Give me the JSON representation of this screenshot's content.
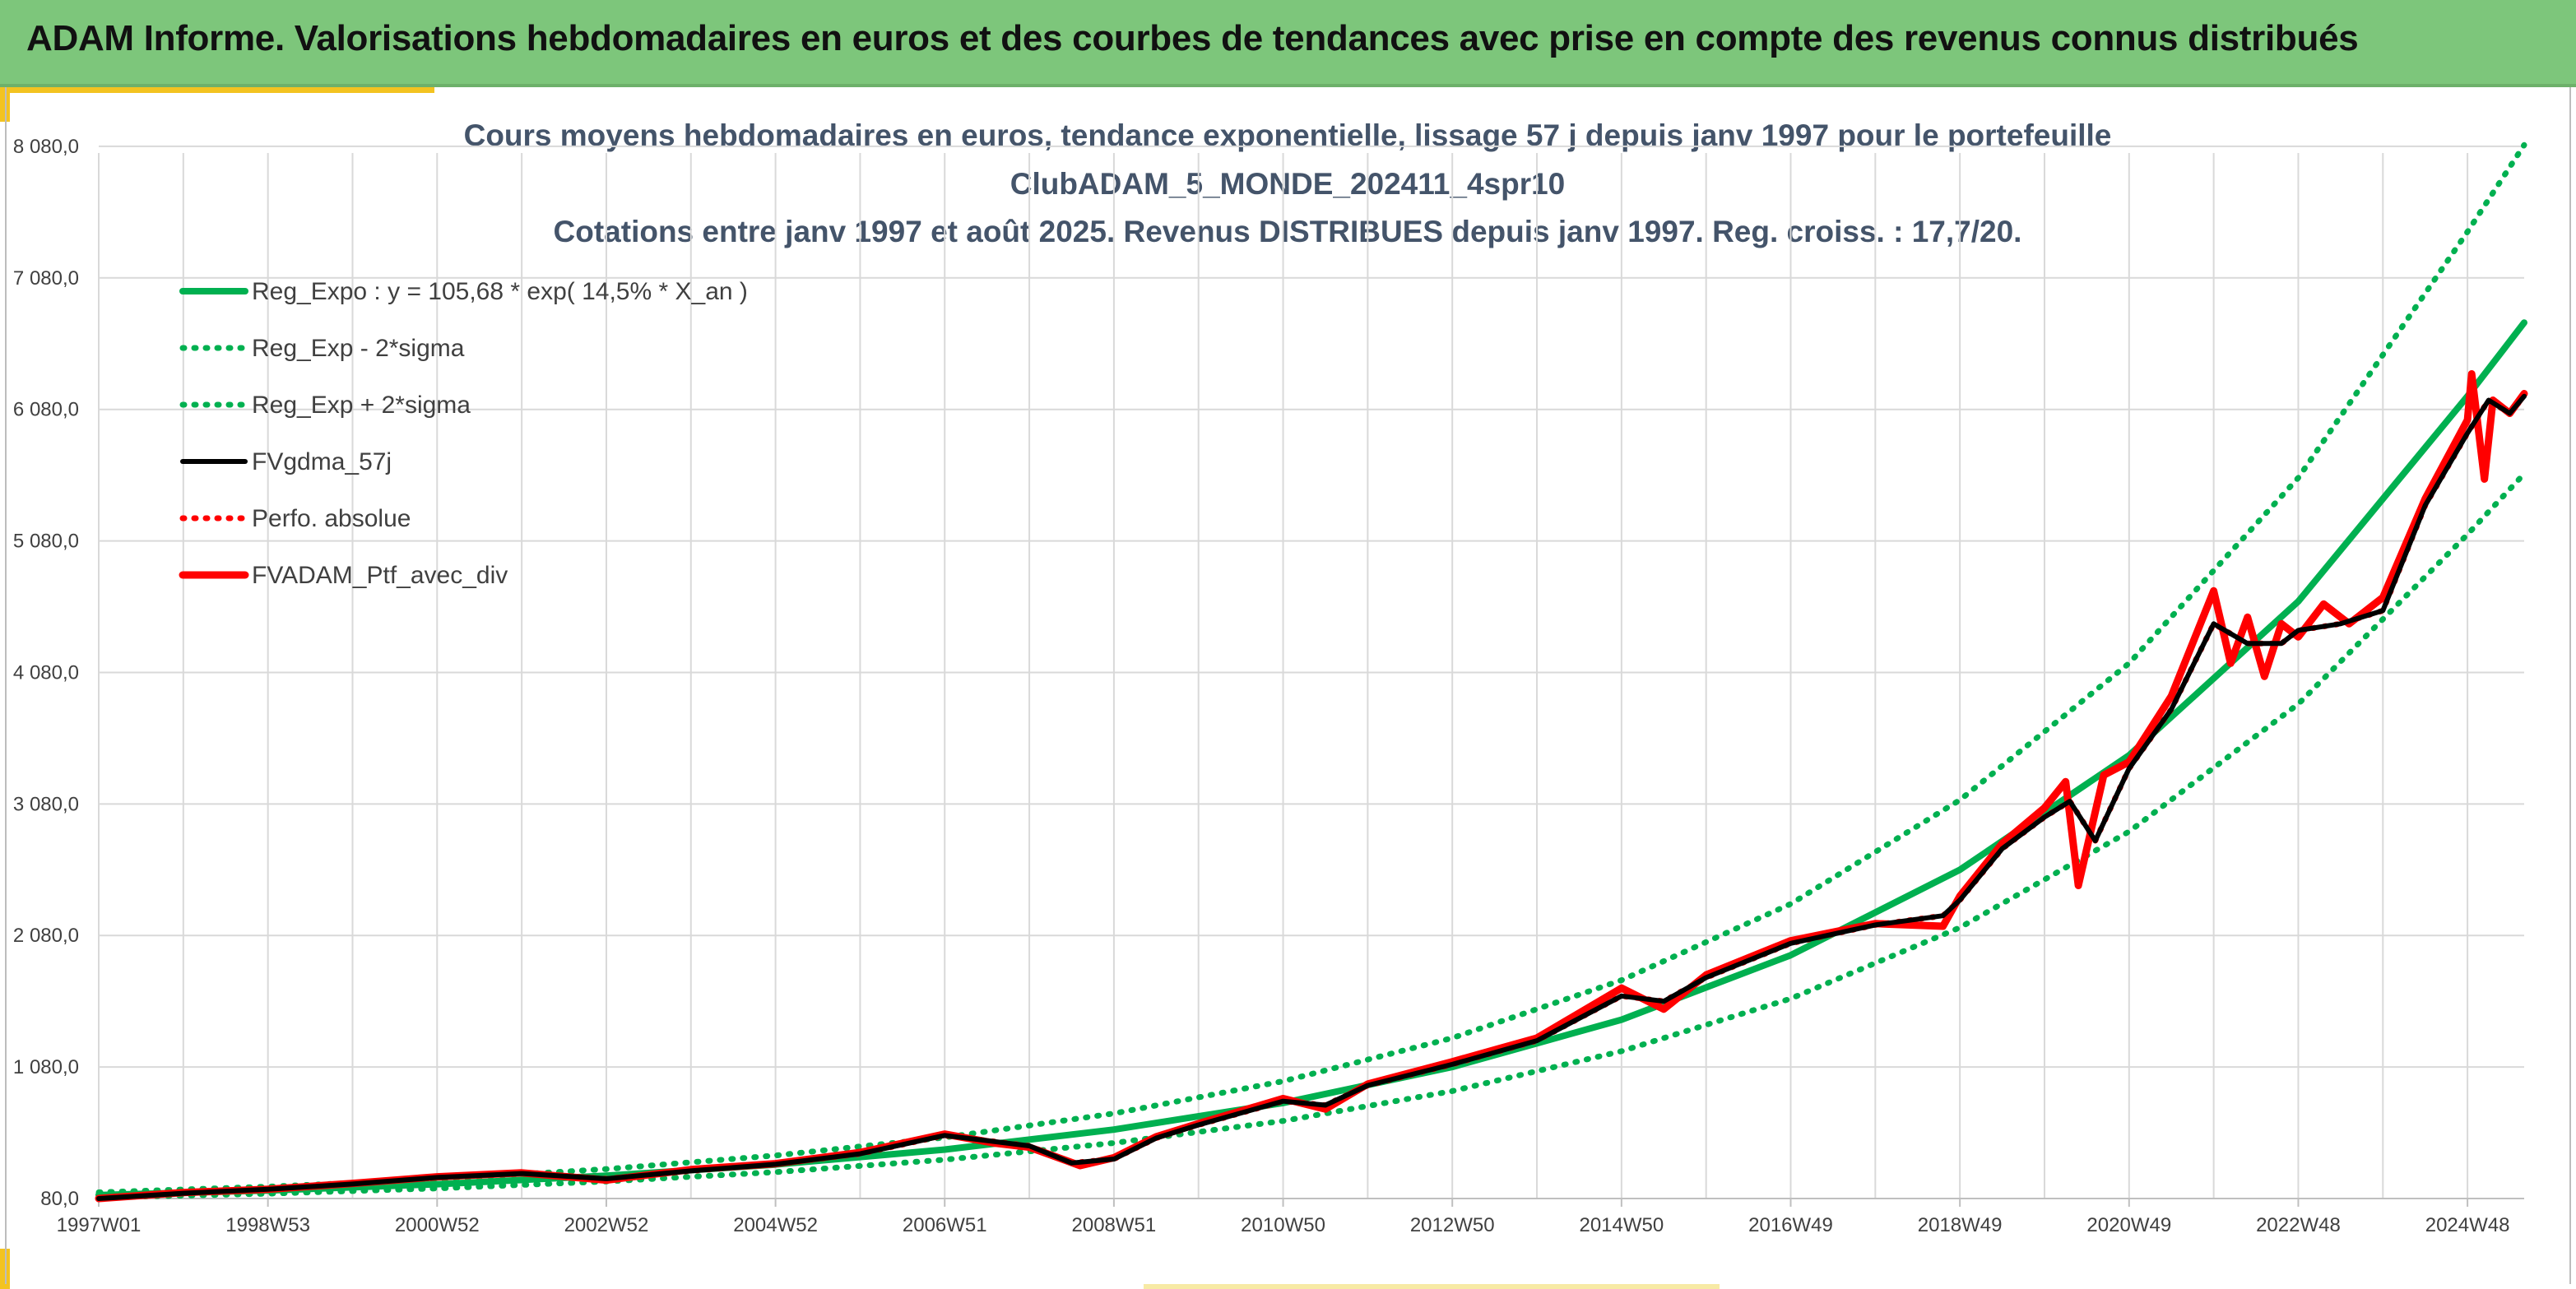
{
  "banner": {
    "title": "ADAM Informe. Valorisations hebdomadaires en euros et des courbes de tendances avec prise en compte des revenus connus distribués"
  },
  "colors": {
    "banner": "#7dc67b",
    "accent": "#f3c320",
    "reg_expo": "#00b050",
    "fvgdma": "#000000",
    "perfo": "#ff0000",
    "portfolio": "#ff0000",
    "title_text": "#44546a"
  },
  "chart_data": {
    "type": "line",
    "title": [
      "Cours moyens hebdomadaires en euros, tendance exponentielle, lissage 57 j depuis janv 1997 pour le portefeuille",
      "ClubADAM_5_MONDE_202411_4spr10",
      "Cotations entre janv 1997 et août 2025. Revenus DISTRIBUES depuis janv 1997. Reg. croiss. : 17,7/20."
    ],
    "xlabel": "",
    "ylabel": "",
    "ylim": [
      80,
      8080
    ],
    "xlim": [
      1997.0,
      2025.67
    ],
    "grid": true,
    "legend_position": "top-left",
    "x_ticks": [
      {
        "x": 1997.0,
        "label": "1997W01"
      },
      {
        "x": 1999.0,
        "label": "1998W53"
      },
      {
        "x": 2001.0,
        "label": "2000W52"
      },
      {
        "x": 2003.0,
        "label": "2002W52"
      },
      {
        "x": 2005.0,
        "label": "2004W52"
      },
      {
        "x": 2007.0,
        "label": "2006W51"
      },
      {
        "x": 2009.0,
        "label": "2008W51"
      },
      {
        "x": 2011.0,
        "label": "2010W50"
      },
      {
        "x": 2013.0,
        "label": "2012W50"
      },
      {
        "x": 2015.0,
        "label": "2014W50"
      },
      {
        "x": 2017.0,
        "label": "2016W49"
      },
      {
        "x": 2019.0,
        "label": "2018W49"
      },
      {
        "x": 2021.0,
        "label": "2020W49"
      },
      {
        "x": 2023.0,
        "label": "2022W48"
      },
      {
        "x": 2025.0,
        "label": "2024W48"
      }
    ],
    "y_ticks": [
      {
        "y": 80,
        "label": "80,0"
      },
      {
        "y": 1080,
        "label": "1 080,0"
      },
      {
        "y": 2080,
        "label": "2 080,0"
      },
      {
        "y": 3080,
        "label": "3 080,0"
      },
      {
        "y": 4080,
        "label": "4 080,0"
      },
      {
        "y": 5080,
        "label": "5 080,0"
      },
      {
        "y": 6080,
        "label": "6 080,0"
      },
      {
        "y": 7080,
        "label": "7 080,0"
      },
      {
        "y": 8080,
        "label": "8 080,0"
      }
    ],
    "series": [
      {
        "name": "Reg_Expo : y = 105,68 * exp( 14,5% *  X_an )",
        "style": "solid",
        "color": "#00b050",
        "x": [
          1997,
          1999,
          2001,
          2003,
          2005,
          2007,
          2009,
          2011,
          2013,
          2015,
          2017,
          2019,
          2021,
          2023,
          2025,
          2025.67
        ],
        "y": [
          106,
          141,
          189,
          253,
          338,
          452,
          604,
          807,
          1080,
          1440,
          1930,
          2580,
          3450,
          4620,
          6180,
          6740
        ]
      },
      {
        "name": "Reg_Exp - 2*sigma",
        "style": "dotted",
        "color": "#00b050",
        "x": [
          1997,
          1999,
          2001,
          2003,
          2005,
          2007,
          2009,
          2011,
          2013,
          2015,
          2017,
          2019,
          2021,
          2023,
          2025,
          2025.67
        ],
        "y": [
          88,
          117,
          157,
          210,
          281,
          375,
          502,
          670,
          897,
          1200,
          1600,
          2140,
          2870,
          3840,
          5130,
          5590
        ]
      },
      {
        "name": "Reg_Exp + 2*sigma",
        "style": "dotted",
        "color": "#00b050",
        "x": [
          1997,
          1999,
          2001,
          2003,
          2005,
          2007,
          2009,
          2011,
          2013,
          2015,
          2017,
          2019,
          2021,
          2023,
          2025,
          2025.67
        ],
        "y": [
          127,
          170,
          227,
          304,
          407,
          544,
          727,
          972,
          1300,
          1740,
          2320,
          3110,
          4150,
          5560,
          7430,
          8090
        ]
      },
      {
        "name": "FVgdma_57j",
        "style": "solid",
        "color": "#000000",
        "x": [
          1997.0,
          1998.0,
          1999.0,
          2000.0,
          2001.0,
          2002.0,
          2003.0,
          2004.0,
          2005.0,
          2006.0,
          2007.0,
          2008.0,
          2008.5,
          2009.0,
          2009.5,
          2010.0,
          2011.0,
          2011.5,
          2012.0,
          2013.0,
          2014.0,
          2015.0,
          2015.5,
          2016.0,
          2017.0,
          2018.0,
          2018.8,
          2019.0,
          2019.5,
          2020.0,
          2020.3,
          2020.6,
          2021.0,
          2021.5,
          2022.0,
          2022.4,
          2022.8,
          2023.0,
          2023.5,
          2024.0,
          2024.5,
          2025.0,
          2025.25,
          2025.5,
          2025.67
        ],
        "y": [
          80,
          120,
          150,
          190,
          240,
          270,
          230,
          290,
          340,
          420,
          560,
          480,
          350,
          380,
          540,
          640,
          820,
          790,
          940,
          1100,
          1280,
          1620,
          1580,
          1760,
          2020,
          2160,
          2230,
          2350,
          2740,
          2980,
          3100,
          2800,
          3350,
          3800,
          4450,
          4300,
          4300,
          4400,
          4450,
          4550,
          5350,
          5900,
          6150,
          6050,
          6180
        ]
      },
      {
        "name": "Perfo. absolue",
        "style": "dotted",
        "color": "#ff0000",
        "x": [
          1997.0,
          1998.0,
          1999.0,
          2000.0,
          2001.0,
          2002.0,
          2003.0,
          2004.0,
          2005.0,
          2006.0,
          2007.0,
          2008.0,
          2008.5,
          2009.0,
          2009.5,
          2010.0,
          2011.0,
          2011.5,
          2012.0,
          2013.0,
          2014.0,
          2015.0,
          2015.5,
          2016.0,
          2017.0,
          2018.0,
          2018.8,
          2019.0,
          2019.5,
          2020.0,
          2020.3,
          2020.6,
          2021.0,
          2021.5,
          2022.0,
          2022.4,
          2022.8,
          2023.0,
          2023.5,
          2024.0,
          2024.5,
          2025.0,
          2025.25,
          2025.5,
          2025.67
        ],
        "y": [
          80,
          120,
          150,
          190,
          240,
          270,
          230,
          290,
          340,
          420,
          560,
          480,
          350,
          380,
          540,
          640,
          820,
          790,
          940,
          1100,
          1280,
          1620,
          1580,
          1760,
          2020,
          2160,
          2230,
          2350,
          2740,
          2980,
          3100,
          2800,
          3350,
          3800,
          4450,
          4300,
          4300,
          4400,
          4450,
          4550,
          5350,
          5900,
          6150,
          6050,
          6180
        ]
      },
      {
        "name": "FVADAM_Ptf_avec_div",
        "style": "solid",
        "color": "#ff0000",
        "x": [
          1997.0,
          1998.0,
          1999.0,
          2000.0,
          2001.0,
          2002.0,
          2003.0,
          2004.0,
          2005.0,
          2006.0,
          2007.0,
          2007.6,
          2008.0,
          2008.6,
          2009.0,
          2009.5,
          2010.0,
          2011.0,
          2011.5,
          2012.0,
          2013.0,
          2014.0,
          2015.0,
          2015.5,
          2016.0,
          2017.0,
          2018.0,
          2018.8,
          2019.0,
          2019.5,
          2020.0,
          2020.25,
          2020.4,
          2020.7,
          2021.0,
          2021.5,
          2022.0,
          2022.2,
          2022.4,
          2022.6,
          2022.8,
          2023.0,
          2023.3,
          2023.6,
          2024.0,
          2024.5,
          2025.0,
          2025.05,
          2025.2,
          2025.3,
          2025.5,
          2025.67
        ],
        "y": [
          80,
          125,
          150,
          195,
          245,
          275,
          220,
          300,
          345,
          430,
          570,
          500,
          470,
          330,
          390,
          550,
          650,
          840,
          760,
          950,
          1120,
          1300,
          1680,
          1520,
          1780,
          2040,
          2170,
          2150,
          2380,
          2780,
          3050,
          3250,
          2460,
          3300,
          3400,
          3900,
          4700,
          4150,
          4500,
          4050,
          4450,
          4350,
          4600,
          4450,
          4650,
          5400,
          6000,
          6350,
          5550,
          6150,
          6050,
          6200
        ]
      }
    ]
  }
}
